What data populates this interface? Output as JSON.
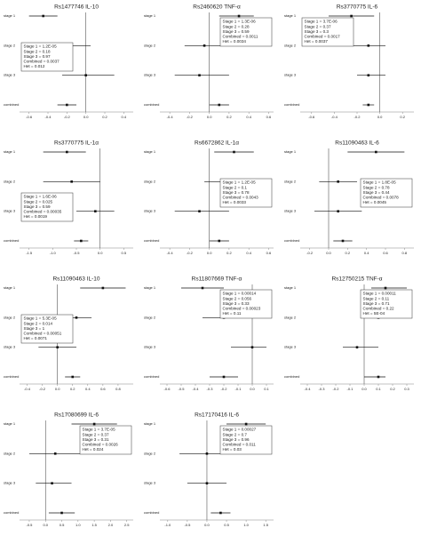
{
  "chart_data": [
    {
      "type": "forest",
      "title": "Rs1477746 IL-10",
      "categories": [
        "stage 1",
        "stage 2",
        "stage 3",
        "combined"
      ],
      "values": [
        -0.45,
        -0.2,
        0.0,
        -0.2
      ],
      "lower": [
        -0.6,
        -0.45,
        -0.25,
        -0.3
      ],
      "upper": [
        -0.3,
        0.05,
        0.3,
        -0.1
      ],
      "xlim": [
        -0.7,
        0.5
      ],
      "xticks": [
        -0.6,
        -0.4,
        -0.2,
        {
          "value": 0,
          "label": "0.0"
        },
        0.2,
        0.4
      ],
      "annotations": [
        "Stage 1 = 1.2E-05",
        "Stage 2 = 0.18",
        "Stage 3 = 0.97",
        "Combined = 0.0037",
        "Het = 0.012"
      ],
      "legend": "center left"
    },
    {
      "type": "forest",
      "title": "Rs2460620 TNF-α",
      "categories": [
        "stage 1",
        "stage 2",
        "stage 3",
        "combined"
      ],
      "values": [
        0.3,
        -0.05,
        -0.1,
        0.1
      ],
      "lower": [
        0.1,
        -0.25,
        -0.35,
        0.0
      ],
      "upper": [
        0.45,
        0.2,
        0.2,
        0.2
      ],
      "xlim": [
        -0.5,
        0.65
      ],
      "xticks": [
        -0.4,
        -0.2,
        {
          "value": 0,
          "label": "0.0"
        },
        0.2,
        0.4,
        0.6
      ],
      "annotations": [
        "Stage 1 = 1.3E-06",
        "Stage 2 = 0.28",
        "Stage 3 = 0.59",
        "Combined = 0.0011",
        "Het = 0.0034"
      ],
      "legend": "upper right"
    },
    {
      "type": "forest",
      "title": "Rs3770775 IL-6",
      "categories": [
        "stage 1",
        "stage 2",
        "stage 3",
        "combined"
      ],
      "values": [
        -0.25,
        -0.1,
        -0.1,
        -0.1
      ],
      "lower": [
        -0.45,
        -0.25,
        -0.2,
        -0.15
      ],
      "upper": [
        -0.05,
        0.05,
        0.05,
        -0.05
      ],
      "xlim": [
        -0.7,
        0.3
      ],
      "xticks": [
        -0.6,
        -0.4,
        -0.2,
        {
          "value": 0,
          "label": "0.0"
        },
        0.2
      ],
      "annotations": [
        "Stage 1 = 3.7E-06",
        "Stage 2 = 0.37",
        "Stage 3 = 0.3",
        "Combined = 0.0017",
        "Het = 0.0037"
      ],
      "legend": "upper left"
    },
    {
      "type": "forest",
      "title": "Rs3770775 IL-1α",
      "categories": [
        "stage 1",
        "stage 2",
        "stage 3",
        "combined"
      ],
      "values": [
        -0.7,
        -0.6,
        -0.1,
        -0.4
      ],
      "lower": [
        -1.2,
        -1.2,
        -0.5,
        -0.55
      ],
      "upper": [
        -0.3,
        0.0,
        0.3,
        -0.25
      ],
      "xlim": [
        -1.7,
        0.7
      ],
      "xticks": [
        -1.5,
        {
          "value": -1,
          "label": "-1.0"
        },
        -0.5,
        {
          "value": 0,
          "label": "0.0"
        },
        0.5
      ],
      "annotations": [
        "Stage 1 = 1.6E-06",
        "Stage 2 = 0.025",
        "Stage 3 = 0.59",
        "Combined = 0.00035",
        "Het = 0.0019"
      ],
      "legend": "lower left"
    },
    {
      "type": "forest",
      "title": "Rs6672862 IL-1α",
      "categories": [
        "stage 1",
        "stage 2",
        "stage 3",
        "combined"
      ],
      "values": [
        0.25,
        0.15,
        -0.1,
        0.1
      ],
      "lower": [
        0.05,
        -0.05,
        -0.35,
        0.0
      ],
      "upper": [
        0.45,
        0.35,
        0.2,
        0.2
      ],
      "xlim": [
        -0.5,
        0.65
      ],
      "xticks": [
        -0.4,
        -0.2,
        {
          "value": 0,
          "label": "0.0"
        },
        0.2,
        0.4,
        0.6
      ],
      "annotations": [
        "Stage 1 = 1.2E-05",
        "Stage 2 = 0.1",
        "Stage 3 = 0.78",
        "Combined = 0.0043",
        "Het = 0.0033"
      ],
      "legend": "center right"
    },
    {
      "type": "forest",
      "title": "Rs11090463 IL-6",
      "categories": [
        "stage 1",
        "stage 2",
        "stage 3",
        "combined"
      ],
      "values": [
        0.5,
        0.1,
        0.1,
        0.15
      ],
      "lower": [
        0.2,
        -0.1,
        -0.15,
        0.05
      ],
      "upper": [
        0.8,
        0.3,
        0.35,
        0.25
      ],
      "xlim": [
        -0.3,
        0.9
      ],
      "xticks": [
        -0.2,
        {
          "value": 0,
          "label": "0.0"
        },
        0.2,
        0.4,
        0.6,
        0.8
      ],
      "annotations": [
        "Stage 1 = 1.8E-05",
        "Stage 2 = 0.78",
        "Stage 3 = 0.44",
        "Combined = 0.0078",
        "Het = 0.0045"
      ],
      "legend": "center right"
    },
    {
      "type": "forest",
      "title": "Rs11090463 IL-10",
      "categories": [
        "stage 1",
        "stage 2",
        "stage 3",
        "combined"
      ],
      "values": [
        0.6,
        0.25,
        0.0,
        0.2
      ],
      "lower": [
        0.3,
        0.05,
        -0.25,
        0.1
      ],
      "upper": [
        0.9,
        0.45,
        0.25,
        0.3
      ],
      "xlim": [
        -0.5,
        1.0
      ],
      "xticks": [
        -0.4,
        -0.2,
        {
          "value": 0,
          "label": "0.0"
        },
        0.2,
        0.4,
        0.6,
        0.8
      ],
      "annotations": [
        "Stage 1 = 5.3E-05",
        "Stage 2 = 0.014",
        "Stage 3 = 1",
        "Combined = 0.00051",
        "Het = 0.0071"
      ],
      "legend": "center left"
    },
    {
      "type": "forest",
      "title": "Rs11807669 TNF-α",
      "categories": [
        "stage 1",
        "stage 2",
        "stage 3",
        "combined"
      ],
      "values": [
        -0.35,
        -0.2,
        0.0,
        -0.2
      ],
      "lower": [
        -0.5,
        -0.35,
        -0.15,
        -0.3
      ],
      "upper": [
        -0.2,
        -0.05,
        0.1,
        -0.1
      ],
      "xlim": [
        -0.65,
        0.15
      ],
      "xticks": [
        -0.6,
        -0.5,
        -0.4,
        -0.3,
        -0.2,
        -0.1,
        {
          "value": 0,
          "label": "0.0"
        },
        0.1
      ],
      "annotations": [
        "Stage 1 = 0.00014",
        "Stage 2 = 0.056",
        "Stage 3 = 0.33",
        "Combined = 0.00023",
        "Het = 0.11"
      ],
      "legend": "upper right"
    },
    {
      "type": "forest",
      "title": "Rs12750215 TNF-α",
      "categories": [
        "stage 1",
        "stage 2",
        "stage 3",
        "combined"
      ],
      "values": [
        0.15,
        0.1,
        -0.05,
        0.1
      ],
      "lower": [
        0.05,
        0.0,
        -0.15,
        0.0
      ],
      "upper": [
        0.3,
        0.25,
        0.1,
        0.15
      ],
      "xlim": [
        -0.45,
        0.35
      ],
      "xticks": [
        -0.4,
        -0.3,
        -0.2,
        -0.1,
        {
          "value": 0,
          "label": "0.0"
        },
        0.1,
        0.2,
        0.3
      ],
      "annotations": [
        "Stage 1 = 0.00011",
        "Stage 2 = 0.11",
        "Stage 3 = 0.71",
        "Combined = 0.22",
        "Het = 5E-04"
      ],
      "legend": "upper right"
    },
    {
      "type": "forest",
      "title": "Rs17080699 IL-6",
      "categories": [
        "stage 1",
        "stage 2",
        "stage 3",
        "combined"
      ],
      "values": [
        1.5,
        0.3,
        0.2,
        0.5
      ],
      "lower": [
        0.8,
        -0.5,
        -0.3,
        0.1
      ],
      "upper": [
        2.2,
        1.2,
        0.8,
        0.9
      ],
      "xlim": [
        -0.8,
        2.7
      ],
      "xticks": [
        -0.5,
        {
          "value": 0,
          "label": "0.0"
        },
        0.5,
        {
          "value": 1,
          "label": "1.0"
        },
        1.5,
        {
          "value": 2,
          "label": "2.0"
        },
        2.5
      ],
      "annotations": [
        "Stage 1 = 3.7E-05",
        "Stage 2 = 0.37",
        "Stage 3 = 0.31",
        "Combined = 0.0026",
        "Het = 0.024"
      ],
      "legend": "upper right"
    },
    {
      "type": "forest",
      "title": "Rs17170416 IL-6",
      "categories": [
        "stage 1",
        "stage 2",
        "stage 3",
        "combined"
      ],
      "values": [
        1.0,
        0.0,
        0.0,
        0.35
      ],
      "lower": [
        0.5,
        -0.7,
        -0.5,
        0.1
      ],
      "upper": [
        1.5,
        0.8,
        0.5,
        0.6
      ],
      "xlim": [
        -1.2,
        1.7
      ],
      "xticks": [
        {
          "value": -1,
          "label": "-1.0"
        },
        -0.5,
        {
          "value": 0,
          "label": "0.0"
        },
        0.5,
        {
          "value": 1,
          "label": "1.0"
        },
        1.5
      ],
      "annotations": [
        "Stage 1 = 0.00027",
        "Stage 2 = 0.7",
        "Stage 3 = 0.96",
        "Combined = 0.011",
        "Het = 0.03"
      ],
      "legend": "upper right"
    }
  ]
}
